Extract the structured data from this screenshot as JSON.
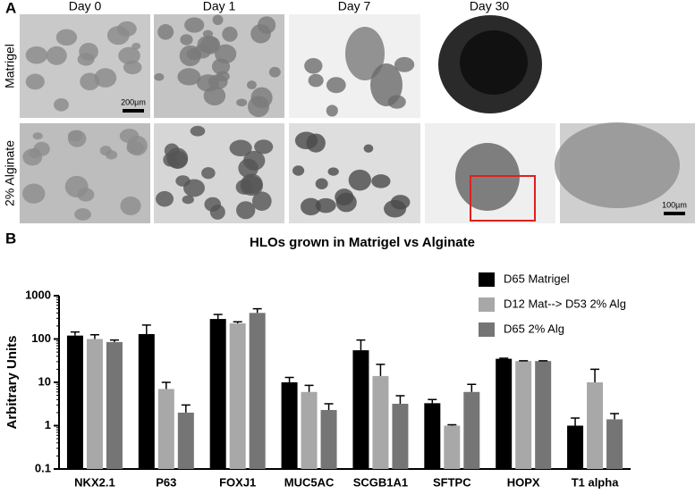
{
  "figure": {
    "panel_a": {
      "label": "A",
      "columns": [
        "Day 0",
        "Day 1",
        "Day 7",
        "Day 30"
      ],
      "rows": [
        "Matrigel",
        "2% Alginate"
      ],
      "scale_bars": [
        "200µm",
        "100µm"
      ]
    },
    "panel_b_label": "B"
  },
  "chart_data": {
    "type": "bar",
    "title": "HLOs grown in Matrigel vs Alginate",
    "y_label": "Arbitrary Units",
    "log": true,
    "ylim": [
      0.1,
      1000
    ],
    "yticks": [
      0.1,
      1,
      10,
      100,
      1000
    ],
    "categories": [
      "NKX2.1",
      "P63",
      "FOXJ1",
      "MUC5AC",
      "SCGB1A1",
      "SFTPC",
      "HOPX",
      "T1 alpha"
    ],
    "legend": "top-right",
    "series": [
      {
        "name": "D65 Matrigel",
        "color": "#000000",
        "values": [
          120,
          130,
          290,
          10,
          55,
          3.3,
          35,
          1
        ],
        "errors": [
          25,
          80,
          80,
          3,
          40,
          0.7,
          1,
          0.5
        ]
      },
      {
        "name": "D12 Mat--> D53 2% Alg",
        "color": "#a8a8a8",
        "values": [
          100,
          7,
          230,
          6,
          14,
          1,
          31,
          10
        ],
        "errors": [
          25,
          3,
          20,
          2.5,
          12,
          0.05,
          0.5,
          10
        ]
      },
      {
        "name": "D65 2% Alg",
        "color": "#757575",
        "values": [
          85,
          2,
          400,
          2.3,
          3.2,
          6,
          31,
          1.4
        ],
        "errors": [
          10,
          1,
          100,
          0.9,
          1.7,
          3,
          0.5,
          0.5
        ]
      }
    ]
  }
}
